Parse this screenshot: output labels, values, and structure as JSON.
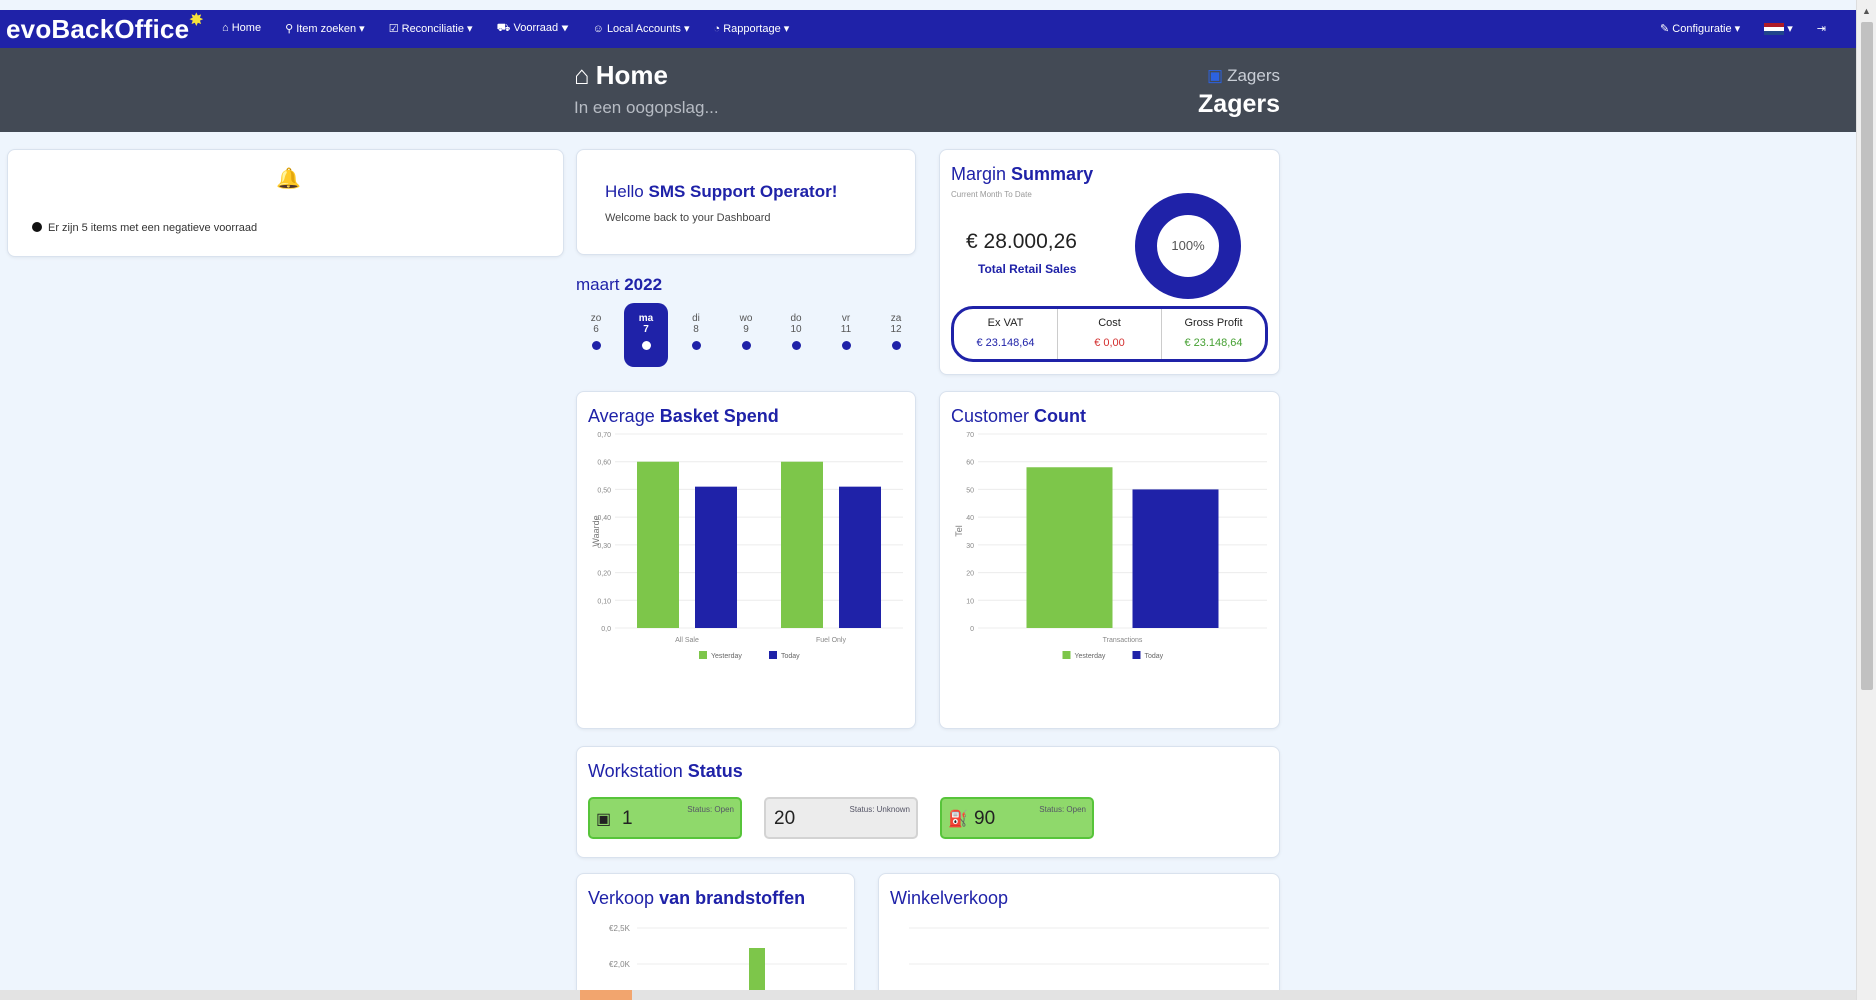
{
  "app": {
    "brand": "evoBackOffice",
    "nav": [
      "Home",
      "Item zoeken",
      "Reconciliatie",
      "Voorraad",
      "Local Accounts",
      "Rapportage"
    ],
    "nav_right": [
      "Configuratie"
    ]
  },
  "header": {
    "title": "Home",
    "subtitle": "In een oogopslag...",
    "store_small": "Zagers",
    "store_big": "Zagers"
  },
  "notice": {
    "text": "Er zijn 5 items met een negatieve voorraad"
  },
  "hello": {
    "prefix": "Hello",
    "name": "SMS Support Operator!",
    "sub": "Welcome back to your Dashboard"
  },
  "calendar": {
    "month_name": "maart",
    "year": "2022",
    "days": [
      {
        "name": "zo",
        "num": "6"
      },
      {
        "name": "ma",
        "num": "7"
      },
      {
        "name": "di",
        "num": "8"
      },
      {
        "name": "wo",
        "num": "9"
      },
      {
        "name": "do",
        "num": "10"
      },
      {
        "name": "vr",
        "num": "11"
      },
      {
        "name": "za",
        "num": "12"
      }
    ],
    "selected_index": 1
  },
  "margin": {
    "title_a": "Margin",
    "title_b": "Summary",
    "sub": "Current Month To Date",
    "amount": "€ 28.000,26",
    "amount_label": "Total Retail Sales",
    "donut_label": "100%",
    "donut_fraction": 1.0,
    "cols": [
      {
        "label": "Ex VAT",
        "value": "€ 23.148,64",
        "color": "#1f22a8"
      },
      {
        "label": "Cost",
        "value": "€ 0,00",
        "color": "#d32f2f"
      },
      {
        "label": "Gross Profit",
        "value": "€ 23.148,64",
        "color": "#45a032"
      }
    ]
  },
  "colors": {
    "primary": "#1f22a8",
    "green": "#7dc64a",
    "header": "#434a55"
  },
  "chart_data": [
    {
      "type": "bar",
      "title_a": "Average",
      "title_b": "Basket Spend",
      "ylabel": "Waarde",
      "categories": [
        "All Sale",
        "Fuel Only"
      ],
      "ylim": [
        0,
        0.7
      ],
      "yticks": [
        "0,0",
        "0,10",
        "0,20",
        "0,30",
        "0,40",
        "0,50",
        "0,60",
        "0,70"
      ],
      "series": [
        {
          "name": "Yesterday",
          "values": [
            0.6,
            0.6
          ],
          "color": "#7dc64a"
        },
        {
          "name": "Today",
          "values": [
            0.51,
            0.51
          ],
          "color": "#1f22a8"
        }
      ]
    },
    {
      "type": "bar",
      "title_a": "Customer",
      "title_b": "Count",
      "ylabel": "Tel",
      "categories": [
        "Transactions"
      ],
      "ylim": [
        0,
        70
      ],
      "yticks": [
        "0",
        "10",
        "20",
        "30",
        "40",
        "50",
        "60",
        "70"
      ],
      "series": [
        {
          "name": "Yesterday",
          "values": [
            58
          ],
          "color": "#7dc64a"
        },
        {
          "name": "Today",
          "values": [
            50
          ],
          "color": "#1f22a8"
        }
      ]
    }
  ],
  "workstations": {
    "title_a": "Workstation",
    "title_b": "Status",
    "items": [
      {
        "icon": "cash-register-icon",
        "glyph": "▣",
        "num": "1",
        "status": "Status: Open",
        "state": "open"
      },
      {
        "icon": "",
        "glyph": "",
        "num": "20",
        "status": "Status: Unknown",
        "state": "unknown"
      },
      {
        "icon": "fuel-pump-icon",
        "glyph": "⛽",
        "num": "90",
        "status": "Status: Open",
        "state": "open"
      }
    ]
  },
  "fuel": {
    "title_a": "Verkoop",
    "title_b": "van brandstoffen",
    "ticks": [
      "€2,5K",
      "€2,0K"
    ]
  },
  "shop": {
    "title": "Winkelverkoop"
  }
}
